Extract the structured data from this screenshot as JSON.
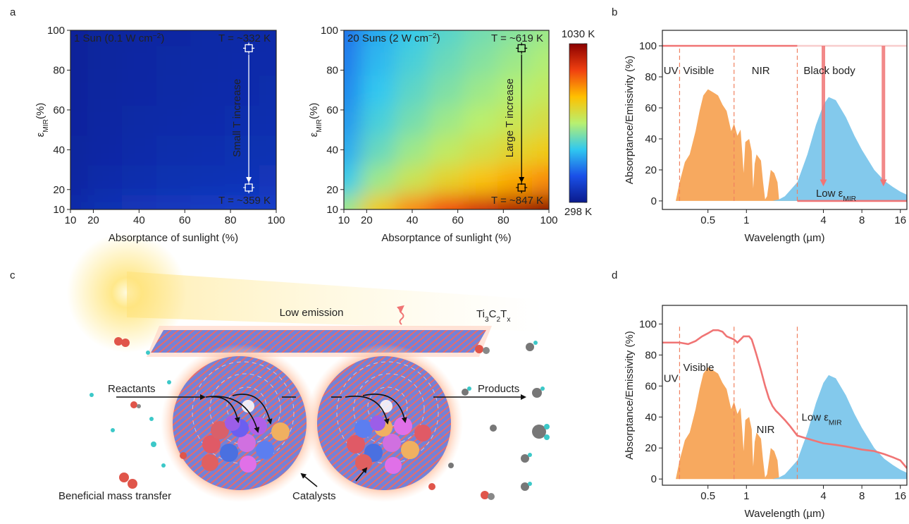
{
  "panel_labels": [
    "a",
    "b",
    "c",
    "d"
  ],
  "chart_data": [
    {
      "type": "heatmap",
      "annotation": [
        "1 Sun (0.1 W cm",
        "−2",
        ")"
      ],
      "t_top": "T = ~332 K",
      "t_bottom": "T = ~359 K",
      "arrow_label": "Small T increase",
      "xlabel": "Absorptance of sunlight (%)",
      "ylabel": [
        "ε",
        "MIR",
        "(%)"
      ],
      "xlim": [
        10,
        100
      ],
      "ylim": [
        10,
        100
      ],
      "xticks": [
        10,
        20,
        40,
        60,
        80,
        100
      ],
      "yticks": [
        10,
        20,
        40,
        60,
        80,
        100
      ],
      "x": [
        10,
        25,
        40,
        55,
        70,
        85,
        100
      ],
      "y": [
        10,
        25,
        40,
        55,
        70,
        85,
        100
      ],
      "z": [
        [
          336,
          349,
          358,
          364,
          370,
          375,
          379
        ],
        [
          326,
          336,
          342,
          347,
          351,
          355,
          358
        ],
        [
          322,
          330,
          336,
          340,
          344,
          347,
          349
        ],
        [
          320,
          327,
          332,
          336,
          339,
          342,
          344
        ],
        [
          318,
          325,
          330,
          333,
          336,
          338,
          341
        ],
        [
          317,
          323,
          328,
          331,
          334,
          336,
          338
        ],
        [
          316,
          322,
          326,
          329,
          332,
          334,
          336
        ]
      ],
      "zlim": [
        298,
        1030
      ],
      "colormap": [
        "#0a1a8c",
        "#1a50e8",
        "#30c8f0",
        "#b8f070",
        "#ffc000",
        "#f04010",
        "#8b0000"
      ],
      "text_color": "#ffffff",
      "points": {
        "x": [
          88,
          88
        ],
        "y": [
          91,
          21
        ]
      }
    },
    {
      "type": "heatmap",
      "annotation": [
        "20 Suns (2 W cm",
        "−2",
        ")"
      ],
      "t_top": "T = ~619 K",
      "t_bottom": "T = ~847 K",
      "arrow_label": "Large T increase",
      "xlabel": "Absorptance of sunlight (%)",
      "ylabel": [
        "ε",
        "MIR",
        "(%)"
      ],
      "xlim": [
        10,
        100
      ],
      "ylim": [
        10,
        100
      ],
      "xticks": [
        10,
        20,
        40,
        60,
        80,
        100
      ],
      "yticks": [
        10,
        20,
        40,
        60,
        80,
        100
      ],
      "x": [
        10,
        25,
        40,
        55,
        70,
        85,
        100
      ],
      "y": [
        10,
        25,
        40,
        55,
        70,
        85,
        100
      ],
      "z": [
        [
          640,
          760,
          837,
          897,
          947,
          990,
          1028
        ],
        [
          550,
          640,
          697,
          741,
          778,
          809,
          837
        ],
        [
          514,
          591,
          640,
          678,
          708,
          736,
          760
        ],
        [
          493,
          562,
          605,
          640,
          667,
          692,
          714
        ],
        [
          478,
          541,
          582,
          613,
          640,
          662,
          682
        ],
        [
          467,
          526,
          564,
          594,
          618,
          640,
          659
        ],
        [
          458,
          514,
          550,
          578,
          602,
          621,
          640
        ]
      ],
      "zlim": [
        298,
        1030
      ],
      "colormap": [
        "#0a1a8c",
        "#1a50e8",
        "#30c8f0",
        "#b8f070",
        "#ffc000",
        "#f04010",
        "#8b0000"
      ],
      "colorbar_ticks": [
        {
          "value": 1030,
          "label": "1030 K"
        },
        {
          "value": 298,
          "label": "298 K"
        }
      ],
      "text_color": "#000000",
      "points": {
        "x": [
          88,
          88
        ],
        "y": [
          91,
          21
        ]
      }
    },
    {
      "type": "area",
      "xlabel": "Wavelength (µm)",
      "ylabel": "Absorptance/Emissivity (%)",
      "xscale": "log",
      "xlim": [
        0.22,
        18
      ],
      "ylim": [
        -5.5,
        110
      ],
      "xticks": [
        0.5,
        1,
        4,
        8,
        16
      ],
      "yticks": [
        0,
        20,
        40,
        60,
        80,
        100
      ],
      "series": [
        {
          "kind": "area",
          "color": "#f7a95f",
          "x": [
            0.28,
            0.3,
            0.33,
            0.36,
            0.4,
            0.43,
            0.46,
            0.5,
            0.55,
            0.6,
            0.65,
            0.7,
            0.76,
            0.8,
            0.85,
            0.9,
            0.93,
            0.95,
            0.98,
            1.05,
            1.1,
            1.13,
            1.16,
            1.2,
            1.3,
            1.35,
            1.4,
            1.45,
            1.55,
            1.65,
            1.75,
            1.8,
            1.95,
            2.05,
            2.2,
            2.35,
            2.5
          ],
          "values": [
            0,
            12,
            25,
            30,
            45,
            58,
            68,
            72,
            70,
            68,
            62,
            58,
            45,
            50,
            42,
            46,
            30,
            18,
            38,
            40,
            32,
            8,
            24,
            30,
            26,
            12,
            1,
            3,
            20,
            18,
            12,
            1,
            1,
            4,
            5,
            3,
            0
          ]
        },
        {
          "kind": "area",
          "color": "#83c9ec",
          "x": [
            1.6,
            1.8,
            2,
            2.5,
            3,
            3.5,
            4,
            4.4,
            5,
            6,
            7,
            8,
            10,
            12,
            14,
            16,
            18
          ],
          "values": [
            0,
            1,
            3,
            12,
            30,
            49,
            62,
            67,
            65,
            54,
            42,
            33,
            20,
            13,
            9,
            6,
            4
          ]
        },
        {
          "kind": "line",
          "color": "#f8cccc",
          "x": [
            2.5,
            18
          ],
          "values": [
            100,
            100
          ]
        },
        {
          "kind": "line",
          "color": "#f07474",
          "x": [
            0.22,
            2.5,
            2.5,
            2.5,
            18
          ],
          "values": [
            100,
            100,
            null,
            0,
            0
          ]
        }
      ],
      "dividers": [
        0.3,
        0.8,
        2.5
      ],
      "divider_color": "#f08060",
      "label_color": "#f5a35a",
      "region_labels": [
        "UV",
        "Visible",
        "NIR"
      ],
      "body_label": "Black body",
      "low_label": [
        "Low ε",
        "MIR"
      ],
      "arrow_color": "#f07474",
      "arrows": [
        {
          "x": 4,
          "from": 100,
          "to": 8
        },
        {
          "x": 11.8,
          "from": 100,
          "to": 8
        }
      ]
    },
    {
      "type": "area",
      "xlabel": "Wavelength (µm)",
      "ylabel": "Absorptance/Emissivity (%)",
      "xscale": "log",
      "xlim": [
        0.22,
        18
      ],
      "ylim": [
        -4,
        112
      ],
      "xticks": [
        0.5,
        1,
        4,
        8,
        16
      ],
      "yticks": [
        0,
        20,
        40,
        60,
        80,
        100
      ],
      "series": [
        {
          "kind": "area",
          "color": "#f7a95f",
          "x": [
            0.28,
            0.3,
            0.33,
            0.36,
            0.4,
            0.43,
            0.46,
            0.5,
            0.55,
            0.6,
            0.65,
            0.7,
            0.76,
            0.8,
            0.85,
            0.9,
            0.93,
            0.95,
            0.98,
            1.05,
            1.1,
            1.13,
            1.16,
            1.2,
            1.3,
            1.35,
            1.4,
            1.45,
            1.55,
            1.65,
            1.75,
            1.8,
            1.95,
            2.05,
            2.2,
            2.35,
            2.5
          ],
          "values": [
            0,
            12,
            25,
            30,
            45,
            58,
            68,
            72,
            70,
            68,
            62,
            58,
            45,
            50,
            42,
            46,
            30,
            18,
            38,
            40,
            32,
            8,
            24,
            30,
            26,
            12,
            1,
            3,
            20,
            18,
            12,
            1,
            1,
            4,
            5,
            3,
            0
          ]
        },
        {
          "kind": "area",
          "color": "#83c9ec",
          "x": [
            1.6,
            1.8,
            2,
            2.5,
            3,
            3.5,
            4,
            4.4,
            5,
            6,
            7,
            8,
            10,
            12,
            14,
            16,
            18
          ],
          "values": [
            0,
            1,
            3,
            12,
            30,
            49,
            62,
            67,
            65,
            54,
            42,
            33,
            20,
            13,
            9,
            6,
            4
          ]
        },
        {
          "kind": "line",
          "color": "#f07474",
          "x": [
            0.22,
            0.3,
            0.35,
            0.4,
            0.45,
            0.5,
            0.55,
            0.6,
            0.65,
            0.7,
            0.75,
            0.8,
            0.85,
            0.9,
            0.95,
            1.0,
            1.05,
            1.1,
            1.15,
            1.2,
            1.3,
            1.4,
            1.5,
            1.6,
            1.7,
            1.8,
            2.0,
            2.2,
            2.5,
            3,
            4,
            5,
            6,
            8,
            10,
            12,
            14,
            16,
            18
          ],
          "values": [
            88,
            88,
            87,
            89,
            92,
            94,
            96,
            96,
            95,
            92,
            91,
            90,
            88,
            90,
            92,
            92,
            92,
            90,
            85,
            80,
            70,
            60,
            52,
            47,
            44,
            42,
            38,
            34,
            28,
            26,
            23,
            22,
            21,
            19,
            18,
            16,
            14,
            12,
            7
          ]
        }
      ],
      "dividers": [
        0.3,
        0.8,
        2.5
      ],
      "divider_color": "#f08060",
      "label_color": "#f5a35a",
      "region_labels": [
        "UV",
        "Visible",
        "NIR"
      ],
      "low_label": [
        "Low ε",
        "MIR"
      ]
    }
  ],
  "illustration": {
    "low_emission": "Low emission",
    "material": [
      "Ti",
      "3",
      "C",
      "2",
      "T",
      "x"
    ],
    "reactants": "Reactants",
    "products": "Products",
    "mass_transfer": "Beneficial mass transfer",
    "catalysts": "Catalysts"
  }
}
